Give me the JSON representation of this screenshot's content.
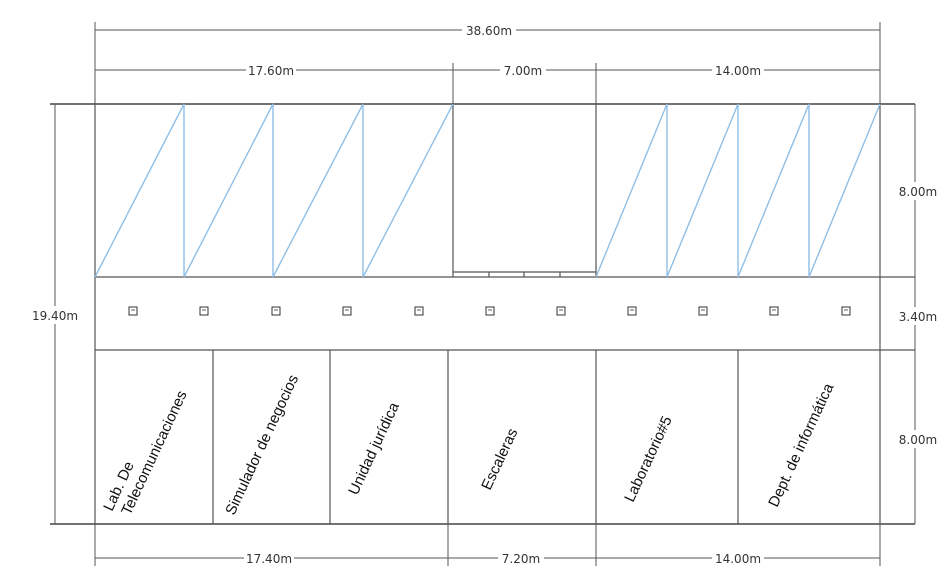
{
  "dimensions": {
    "total_width": "38.60m",
    "top_left": "17.60m",
    "top_middle": "7.00m",
    "top_right": "14.00m",
    "bottom_left": "17.40m",
    "bottom_middle": "7.20m",
    "bottom_right": "14.00m",
    "total_height": "19.40m",
    "right_top": "8.00m",
    "right_middle": "3.40m",
    "right_bottom": "8.00m"
  },
  "rooms": [
    {
      "line1": "Lab. De",
      "line2": "Telecomunicaciones"
    },
    {
      "line1": "Simulador de negocios"
    },
    {
      "line1": "Unidad jurídica"
    },
    {
      "line1": "Escaleras"
    },
    {
      "line1": "Laboratorio#5"
    },
    {
      "line1": "Dept. de informática"
    }
  ]
}
